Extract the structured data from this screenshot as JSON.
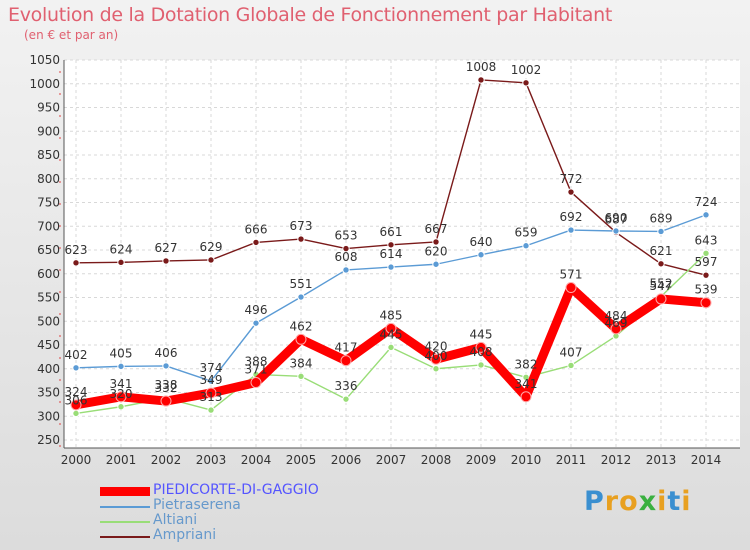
{
  "chart_data": {
    "type": "line",
    "title": "Evolution de la Dotation Globale de Fonctionnement par Habitant",
    "subtitle": "(en € et par an)",
    "x": [
      "2000",
      "2001",
      "2002",
      "2003",
      "2004",
      "2005",
      "2006",
      "2007",
      "2008",
      "2009",
      "2010",
      "2011",
      "2012",
      "2013",
      "2014"
    ],
    "ylim": [
      250,
      1050
    ],
    "yticks": [
      250,
      300,
      350,
      400,
      450,
      500,
      550,
      600,
      650,
      700,
      750,
      800,
      850,
      900,
      950,
      1000,
      1050
    ],
    "grid": true,
    "legend_position": "bottom-left",
    "series": [
      {
        "name": "PIEDICORTE-DI-GAGGIO",
        "color": "#ff0000",
        "values": [
          324,
          341,
          332,
          349,
          371,
          462,
          417,
          485,
          420,
          445,
          341,
          571,
          484,
          547,
          539
        ]
      },
      {
        "name": "Pietraserena",
        "color": "#5b9bd5",
        "values": [
          402,
          405,
          406,
          374,
          496,
          551,
          608,
          614,
          620,
          640,
          659,
          692,
          690,
          689,
          724
        ]
      },
      {
        "name": "Altiani",
        "color": "#99dd77",
        "values": [
          306,
          320,
          338,
          313,
          388,
          384,
          336,
          445,
          400,
          408,
          382,
          407,
          469,
          552,
          643
        ]
      },
      {
        "name": "Ampriani",
        "color": "#7a1a1a",
        "values": [
          623,
          624,
          627,
          629,
          666,
          673,
          653,
          661,
          667,
          1008,
          1002,
          772,
          687,
          621,
          597
        ]
      }
    ]
  },
  "logo": {
    "text": "Proxiti",
    "letters": [
      "P",
      "r",
      "o",
      "x",
      "i",
      "t",
      "i"
    ],
    "colors": [
      "#3a8fd0",
      "#e8a020",
      "#e8a020",
      "#3ab040",
      "#e8a020",
      "#3a8fd0",
      "#e8a020"
    ]
  }
}
